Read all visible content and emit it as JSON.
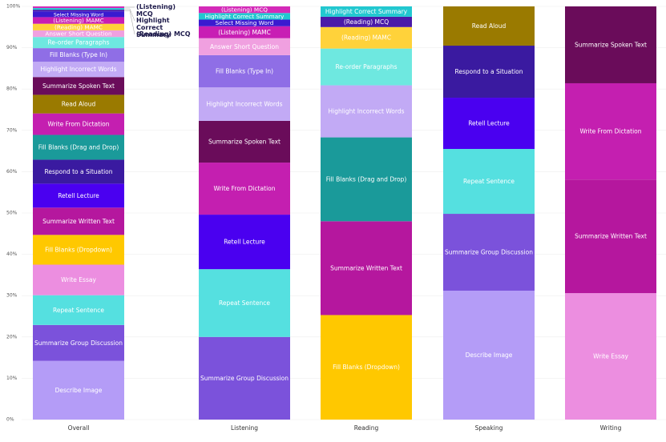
{
  "chart_data": {
    "type": "stacked-bar",
    "categories": [
      "Overall",
      "Listening",
      "Reading",
      "Speaking",
      "Writing"
    ],
    "ylim": [
      0,
      100
    ],
    "yticks": [
      {
        "value": 0,
        "label": "0%"
      },
      {
        "value": 10,
        "label": "10%"
      },
      {
        "value": 20,
        "label": "20%"
      },
      {
        "value": 30,
        "label": "30%"
      },
      {
        "value": 40,
        "label": "40%"
      },
      {
        "value": 50,
        "label": "50%"
      },
      {
        "value": 60,
        "label": "60%"
      },
      {
        "value": 70,
        "label": "70%"
      },
      {
        "value": 80,
        "label": "80%"
      },
      {
        "value": 90,
        "label": "90%"
      },
      {
        "value": 100,
        "label": "100%"
      }
    ],
    "grid": true,
    "series": [
      {
        "name": "Describe Image",
        "color": "#b49cf7",
        "values": [
          14.2,
          null,
          null,
          31.2,
          null
        ]
      },
      {
        "name": "Summarize Group Discussion",
        "color": "#7b52db",
        "values": [
          8.7,
          20.0,
          null,
          18.6,
          null
        ]
      },
      {
        "name": "Repeat Sentence",
        "color": "#55e0e0",
        "values": [
          7.2,
          16.4,
          null,
          15.7,
          null
        ]
      },
      {
        "name": "Write Essay",
        "color": "#ec8ee0",
        "values": [
          7.4,
          null,
          null,
          null,
          30.6
        ]
      },
      {
        "name": "Fill Blanks (Dropdown)",
        "color": "#ffc800",
        "values": [
          7.2,
          null,
          25.3,
          null,
          null
        ]
      },
      {
        "name": "Summarize Written Text",
        "color": "#b5179e",
        "values": [
          6.6,
          null,
          22.7,
          null,
          27.5
        ]
      },
      {
        "name": "Retell Lecture",
        "color": "#4a00f0",
        "values": [
          5.8,
          13.2,
          null,
          12.4,
          null
        ]
      },
      {
        "name": "Respond to a Situation",
        "color": "#3a1aa0",
        "values": [
          5.8,
          null,
          null,
          12.6,
          null
        ]
      },
      {
        "name": "Fill Blanks (Drag and Drop)",
        "color": "#1a9a9a",
        "values": [
          6.0,
          null,
          20.3,
          null,
          null
        ]
      },
      {
        "name": "Write From Dictation",
        "color": "#c41fb0",
        "values": [
          5.2,
          12.6,
          null,
          null,
          23.3
        ]
      },
      {
        "name": "Read Aloud",
        "color": "#9a7a00",
        "values": [
          4.5,
          null,
          null,
          9.5,
          null
        ]
      },
      {
        "name": "Summarize Spoken Text",
        "color": "#6a0c5a",
        "values": [
          4.3,
          10.1,
          null,
          null,
          18.6
        ]
      },
      {
        "name": "Highlight Incorrect Words",
        "color": "#c2aaf5",
        "values": [
          3.7,
          8.1,
          12.6,
          null,
          null
        ]
      },
      {
        "name": "Fill Blanks (Type In)",
        "color": "#8f6ee6",
        "values": [
          3.3,
          7.8,
          null,
          null,
          null
        ]
      },
      {
        "name": "Re-order Paragraphs",
        "color": "#6ee8e0",
        "values": [
          2.7,
          null,
          8.9,
          null,
          null
        ]
      },
      {
        "name": "Answer Short Question",
        "color": "#f0a0e0",
        "values": [
          1.6,
          4.1,
          null,
          null,
          null
        ]
      },
      {
        "name": "(Reading) MAMC",
        "color": "#ffd23a",
        "values": [
          1.6,
          null,
          5.2,
          null,
          null
        ]
      },
      {
        "name": "(Listening) MAMC",
        "color": "#c81eb4",
        "values": [
          1.6,
          2.9,
          null,
          null,
          null
        ]
      },
      {
        "name": "Select Missing Word",
        "color": "#3a1ad0",
        "values": [
          1.4,
          1.6,
          null,
          null,
          null
        ]
      },
      {
        "name": "(Reading) MCQ",
        "color": "#4a1aa8",
        "values": [
          0.4,
          null,
          2.5,
          null,
          null
        ]
      },
      {
        "name": "Highlight Correct Summary",
        "color": "#22c8d0",
        "values": [
          0.4,
          1.6,
          2.5,
          null,
          null
        ]
      },
      {
        "name": "(Listening) MCQ",
        "color": "#d42ab8",
        "values": [
          0.4,
          1.6,
          null,
          null,
          null
        ]
      }
    ]
  }
}
